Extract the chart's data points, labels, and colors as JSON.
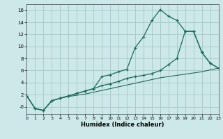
{
  "xlabel": "Humidex (Indice chaleur)",
  "bg_color": "#cce8e8",
  "grid_color": "#aacccc",
  "line_color": "#1a6b5a",
  "xlim": [
    0,
    23
  ],
  "ylim": [
    -1.2,
    17
  ],
  "xticks": [
    0,
    1,
    2,
    3,
    4,
    5,
    6,
    7,
    8,
    9,
    10,
    11,
    12,
    13,
    14,
    15,
    16,
    17,
    18,
    19,
    20,
    21,
    22,
    23
  ],
  "yticks": [
    0,
    2,
    4,
    6,
    8,
    10,
    12,
    14,
    16
  ],
  "ytick_labels": [
    "-0",
    "2",
    "4",
    "6",
    "8",
    "10",
    "12",
    "14",
    "16"
  ],
  "line1_x": [
    0,
    1,
    2,
    3,
    4,
    5,
    6,
    7,
    8,
    9,
    10,
    11,
    12,
    13,
    14,
    15,
    16,
    17,
    18,
    19,
    20,
    21,
    22,
    23
  ],
  "line1_y": [
    1.8,
    -0.3,
    -0.6,
    1.0,
    1.4,
    1.7,
    1.9,
    2.1,
    2.4,
    2.7,
    3.0,
    3.3,
    3.6,
    3.9,
    4.2,
    4.5,
    4.8,
    5.0,
    5.2,
    5.4,
    5.6,
    5.8,
    6.1,
    6.4
  ],
  "line2_x": [
    0,
    1,
    2,
    3,
    4,
    5,
    6,
    7,
    8,
    9,
    10,
    11,
    12,
    13,
    14,
    15,
    16,
    17,
    18,
    19,
    20,
    21,
    22,
    23
  ],
  "line2_y": [
    1.8,
    -0.3,
    -0.6,
    1.0,
    1.4,
    1.8,
    2.2,
    2.6,
    3.0,
    5.0,
    5.3,
    5.8,
    6.2,
    9.8,
    11.6,
    14.3,
    16.1,
    15.0,
    14.3,
    12.5,
    12.5,
    9.0,
    7.2,
    6.4
  ],
  "line3_x": [
    0,
    1,
    2,
    3,
    4,
    5,
    6,
    7,
    8,
    9,
    10,
    11,
    12,
    13,
    14,
    15,
    16,
    17,
    18,
    19,
    20,
    21,
    22,
    23
  ],
  "line3_y": [
    1.8,
    -0.3,
    -0.6,
    1.0,
    1.4,
    1.8,
    2.2,
    2.6,
    3.0,
    3.5,
    3.8,
    4.2,
    4.7,
    5.0,
    5.2,
    5.5,
    6.0,
    7.0,
    8.0,
    12.5,
    12.5,
    9.0,
    7.2,
    6.4
  ]
}
